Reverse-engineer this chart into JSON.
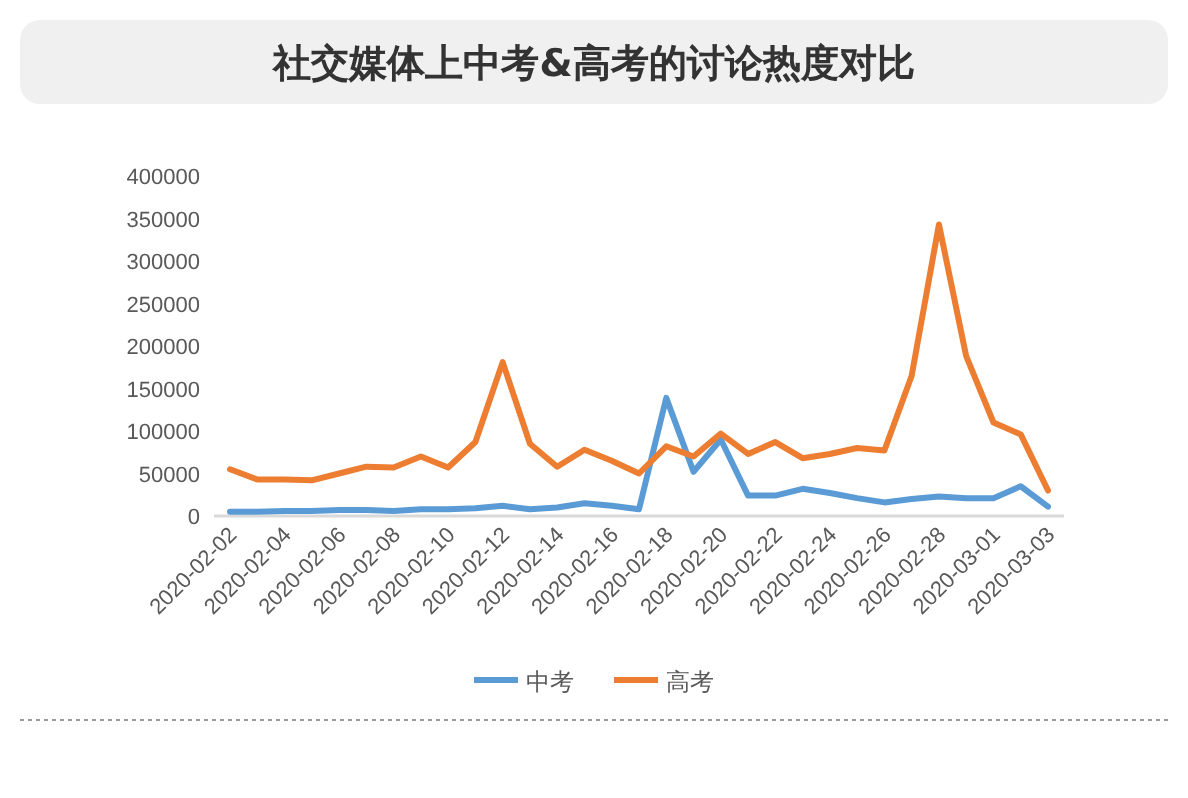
{
  "chart_data": {
    "type": "line",
    "title": "社交媒体上中考&高考的讨论热度对比",
    "categories": [
      "2020-02-02",
      null,
      "2020-02-04",
      null,
      "2020-02-06",
      null,
      "2020-02-08",
      null,
      "2020-02-10",
      null,
      "2020-02-12",
      null,
      "2020-02-14",
      null,
      "2020-02-16",
      null,
      "2020-02-18",
      null,
      "2020-02-20",
      null,
      "2020-02-22",
      null,
      "2020-02-24",
      null,
      "2020-02-26",
      null,
      "2020-02-28",
      null,
      "2020-03-01",
      null,
      "2020-03-03"
    ],
    "series": [
      {
        "name": "中考",
        "color": "#5b9bd5",
        "values": [
          5000,
          5000,
          6000,
          6000,
          7000,
          7000,
          6000,
          8000,
          8000,
          9000,
          12000,
          8000,
          10000,
          15000,
          12000,
          8000,
          139000,
          52000,
          90000,
          24000,
          24000,
          32000,
          27000,
          21000,
          16000,
          20000,
          23000,
          21000,
          21000,
          35000,
          11000
        ]
      },
      {
        "name": "高考",
        "color": "#ed7d31",
        "values": [
          55000,
          43000,
          43000,
          42000,
          50000,
          58000,
          57000,
          70000,
          57000,
          87000,
          181000,
          85000,
          58000,
          78000,
          65000,
          50000,
          82000,
          70000,
          97000,
          73000,
          87000,
          68000,
          73000,
          80000,
          77000,
          165000,
          343000,
          188000,
          110000,
          96000,
          30000
        ]
      }
    ],
    "ylim": [
      0,
      400000
    ],
    "yticks": [
      0,
      50000,
      100000,
      150000,
      200000,
      250000,
      300000,
      350000,
      400000
    ],
    "legend": "bottom",
    "grid": false,
    "marker": "none",
    "line_style": "solid"
  }
}
